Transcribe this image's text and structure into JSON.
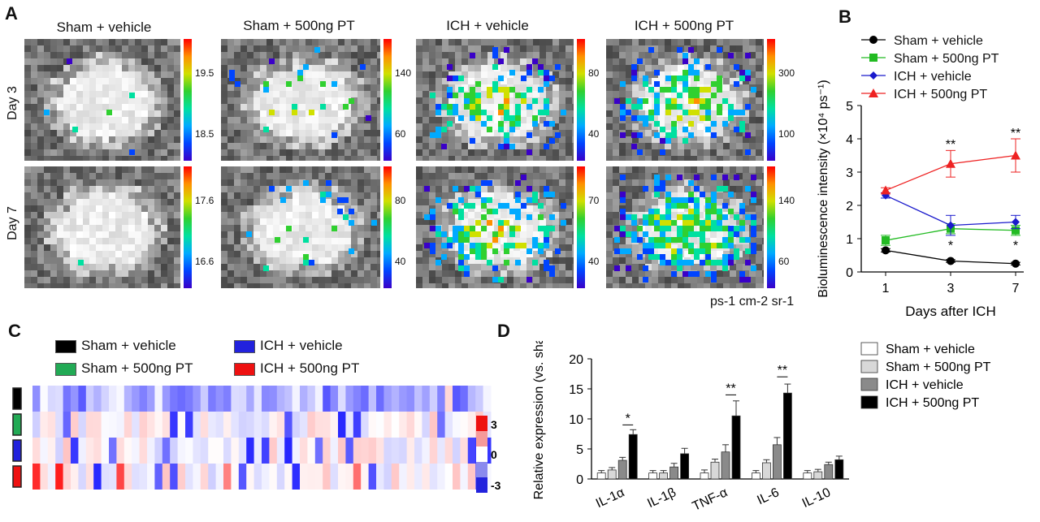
{
  "panels": {
    "a": "A",
    "b": "B",
    "c": "C",
    "d": "D"
  },
  "panel_a": {
    "columns": [
      "Sham + vehicle",
      "Sham + 500ng PT",
      "ICH + vehicle",
      "ICH + 500ng PT"
    ],
    "rows": [
      "Day 3",
      "Day 7"
    ],
    "colorbar_ticks": [
      [
        [
          "19.5",
          "18.5"
        ],
        [
          "140",
          "60"
        ],
        [
          "80",
          "40"
        ],
        [
          "300",
          "100"
        ]
      ],
      [
        [
          "17.6",
          "16.6"
        ],
        [
          "80",
          "40"
        ],
        [
          "70",
          "40"
        ],
        [
          "140",
          "60"
        ]
      ]
    ],
    "unit_label": "ps-1 cm-2 sr-1"
  },
  "panel_b": {
    "chart_data": {
      "type": "line",
      "x": [
        1,
        3,
        7
      ],
      "xticks": [
        "1",
        "3",
        "7"
      ],
      "xlabel": "Days after ICH",
      "ylabel": "Bioluminescence intensity (×10⁴ ps⁻¹)",
      "ylim": [
        0,
        5
      ],
      "yticks": [
        "0",
        "1",
        "2",
        "3",
        "4",
        "5"
      ],
      "legend": "top",
      "series": [
        {
          "name": "Sham + vehicle",
          "color": "#000000",
          "marker": "circle",
          "values": [
            0.65,
            0.33,
            0.25
          ],
          "err": [
            0.05,
            0.04,
            0.04
          ]
        },
        {
          "name": "Sham + 500ng PT",
          "color": "#22bb22",
          "marker": "square",
          "values": [
            0.95,
            1.3,
            1.25
          ],
          "err": [
            0.15,
            0.15,
            0.15
          ]
        },
        {
          "name": "ICH + vehicle",
          "color": "#1a1acc",
          "marker": "diamond",
          "values": [
            2.3,
            1.4,
            1.5
          ],
          "err": [
            0.08,
            0.3,
            0.2
          ]
        },
        {
          "name": "ICH + 500ng PT",
          "color": "#ee2222",
          "marker": "triangle",
          "values": [
            2.45,
            3.25,
            3.5
          ],
          "err": [
            0.08,
            0.4,
            0.5
          ]
        }
      ],
      "annotations": [
        {
          "x": 3,
          "y": 3.85,
          "text": "**"
        },
        {
          "x": 7,
          "y": 4.2,
          "text": "**"
        },
        {
          "x": 3,
          "y": 0.82,
          "text": "*"
        },
        {
          "x": 7,
          "y": 0.82,
          "text": "*"
        }
      ]
    }
  },
  "panel_c": {
    "legend": [
      {
        "name": "Sham + vehicle",
        "color": "#000000"
      },
      {
        "name": "Sham + 500ng PT",
        "color": "#22aa55"
      },
      {
        "name": "ICH + vehicle",
        "color": "#2222dd"
      },
      {
        "name": "ICH + 500ng PT",
        "color": "#ee1111"
      }
    ],
    "scale_ticks": [
      "3",
      "0",
      "-3"
    ]
  },
  "panel_d": {
    "chart_data": {
      "type": "bar",
      "categories": [
        "IL-1α",
        "IL-1β",
        "TNF-α",
        "IL-6",
        "IL-10"
      ],
      "ylabel": "Relative expression (vs. sham)",
      "ylim": [
        0,
        20
      ],
      "yticks": [
        "0",
        "5",
        "10",
        "15",
        "20"
      ],
      "legend": "top-right",
      "series": [
        {
          "name": "Sham + vehicle",
          "color": "#ffffff",
          "values": [
            1.0,
            1.0,
            1.0,
            1.0,
            1.0
          ],
          "err": [
            0.4,
            0.4,
            0.5,
            0.4,
            0.4
          ]
        },
        {
          "name": "Sham + 500ng PT",
          "color": "#d8d8d8",
          "values": [
            1.5,
            1.0,
            2.8,
            2.7,
            1.2
          ],
          "err": [
            0.4,
            0.4,
            0.5,
            0.5,
            0.4
          ]
        },
        {
          "name": "ICH + vehicle",
          "color": "#8a8a8a",
          "values": [
            3.1,
            2.0,
            4.5,
            5.7,
            2.4
          ],
          "err": [
            0.5,
            0.6,
            1.2,
            1.2,
            0.4
          ]
        },
        {
          "name": "ICH + 500ng PT",
          "color": "#000000",
          "values": [
            7.4,
            4.2,
            10.5,
            14.3,
            3.2
          ],
          "err": [
            0.8,
            0.9,
            2.5,
            1.5,
            0.6
          ]
        }
      ],
      "significance": [
        {
          "category": "IL-1α",
          "text": "*",
          "y": 9.0
        },
        {
          "category": "TNF-α",
          "text": "**",
          "y": 14.0
        },
        {
          "category": "IL-6",
          "text": "**",
          "y": 17.0
        }
      ]
    }
  }
}
